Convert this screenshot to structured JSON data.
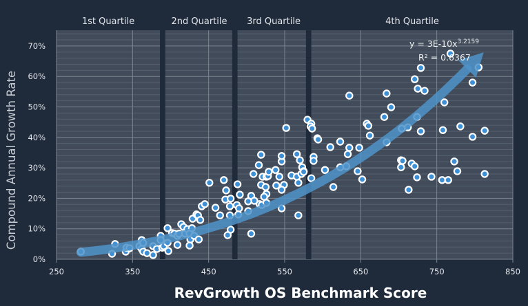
{
  "chart_data": {
    "type": "scatter",
    "xlabel": "RevGrowth OS Benchmark Score",
    "ylabel": "Compound Annual Growth Rate",
    "xlim": [
      250,
      850
    ],
    "ylim": [
      0,
      70
    ],
    "x_ticks": [
      250,
      350,
      450,
      550,
      650,
      750,
      850
    ],
    "y_ticks": [
      "0%",
      "10%",
      "20%",
      "30%",
      "40%",
      "50%",
      "60%",
      "70%"
    ],
    "y_unit": "%",
    "grid": true,
    "quartiles": [
      {
        "label": "1st Quartile",
        "range": [
          250,
          386
        ]
      },
      {
        "label": "2nd Quartile",
        "range": [
          393,
          481
        ]
      },
      {
        "label": "3rd Quartile",
        "range": [
          488,
          578
        ]
      },
      {
        "label": "4th Quartile",
        "range": [
          585,
          850
        ]
      }
    ],
    "trendline": {
      "type": "power",
      "coefficient": 3e-10,
      "exponent": 3.2159,
      "equation_label": "y = 3E-10x",
      "equation_exponent": "3.2159",
      "r_squared_label": "R² = 0.6367",
      "x_range": [
        282,
        815
      ]
    },
    "colors": {
      "background": "#1f2a3b",
      "plot_area": "#414b59",
      "point_fill": "#3d8fd6",
      "point_ring": "#ffffff",
      "trend_arrow": "#4f93c9",
      "quartile_divider": "#1f2a3b"
    },
    "points": [
      [
        282,
        2.5
      ],
      [
        323,
        1.8
      ],
      [
        327,
        5.0
      ],
      [
        341,
        2.5
      ],
      [
        342,
        3.8
      ],
      [
        346,
        3.6
      ],
      [
        359,
        4.3
      ],
      [
        362,
        6.3
      ],
      [
        364,
        5.4
      ],
      [
        362,
        3.4
      ],
      [
        364,
        2.5
      ],
      [
        369,
        2.0
      ],
      [
        377,
        1.4
      ],
      [
        377,
        4.3
      ],
      [
        382,
        3.4
      ],
      [
        387,
        7.7
      ],
      [
        387,
        6.3
      ],
      [
        389,
        3.8
      ],
      [
        391,
        4.3
      ],
      [
        396,
        5.4
      ],
      [
        397,
        2.7
      ],
      [
        396,
        10.2
      ],
      [
        402,
        8.6
      ],
      [
        405,
        8.4
      ],
      [
        409,
        7.7
      ],
      [
        409,
        4.7
      ],
      [
        411,
        8.4
      ],
      [
        414,
        11.5
      ],
      [
        417,
        10.6
      ],
      [
        419,
        8.4
      ],
      [
        422,
        9.9
      ],
      [
        425,
        8.4
      ],
      [
        426,
        6.5
      ],
      [
        425,
        4.5
      ],
      [
        428,
        10.2
      ],
      [
        429,
        13.3
      ],
      [
        431,
        7.7
      ],
      [
        434,
        14.7
      ],
      [
        436,
        14.4
      ],
      [
        437,
        6.5
      ],
      [
        439,
        12.9
      ],
      [
        441,
        17.4
      ],
      [
        445,
        18.1
      ],
      [
        451,
        25.1
      ],
      [
        470,
        26.0
      ],
      [
        488,
        24.6
      ],
      [
        473,
        22.6
      ],
      [
        491,
        21.2
      ],
      [
        506,
        20.8
      ],
      [
        472,
        19.6
      ],
      [
        479,
        19.9
      ],
      [
        459,
        16.9
      ],
      [
        478,
        17.4
      ],
      [
        487,
        17.8
      ],
      [
        490,
        16.7
      ],
      [
        465,
        14.4
      ],
      [
        478,
        14.4
      ],
      [
        489,
        14.7
      ],
      [
        502,
        15.8
      ],
      [
        510,
        19.2
      ],
      [
        502,
        19.0
      ],
      [
        517,
        18.1
      ],
      [
        520,
        17.8
      ],
      [
        526,
        18.5
      ],
      [
        526,
        21.4
      ],
      [
        523,
        20.5
      ],
      [
        519,
        24.4
      ],
      [
        525,
        23.7
      ],
      [
        539,
        24.2
      ],
      [
        549,
        24.4
      ],
      [
        546,
        22.8
      ],
      [
        546,
        16.7
      ],
      [
        568,
        14.4
      ],
      [
        479,
        9.7
      ],
      [
        475,
        7.9
      ],
      [
        506,
        8.4
      ],
      [
        509,
        28.0
      ],
      [
        521,
        27.1
      ],
      [
        526,
        27.1
      ],
      [
        528,
        27.3
      ],
      [
        543,
        27.1
      ],
      [
        559,
        27.5
      ],
      [
        566,
        27.1
      ],
      [
        529,
        28.7
      ],
      [
        538,
        29.3
      ],
      [
        516,
        30.9
      ],
      [
        546,
        32.1
      ],
      [
        546,
        33.9
      ],
      [
        519,
        34.3
      ],
      [
        566,
        34.5
      ],
      [
        570,
        32.5
      ],
      [
        573,
        30.2
      ],
      [
        575,
        28.9
      ],
      [
        572,
        28.0
      ],
      [
        575,
        28.7
      ],
      [
        568,
        25.1
      ],
      [
        585,
        26.6
      ],
      [
        588,
        33.6
      ],
      [
        588,
        32.3
      ],
      [
        552,
        43.1
      ],
      [
        580,
        45.8
      ],
      [
        585,
        44.5
      ],
      [
        584,
        43.6
      ],
      [
        586,
        42.9
      ],
      [
        593,
        39.7
      ],
      [
        594,
        39.3
      ],
      [
        610,
        36.8
      ],
      [
        603,
        29.3
      ],
      [
        614,
        23.7
      ],
      [
        623,
        38.6
      ],
      [
        635,
        36.6
      ],
      [
        633,
        34.5
      ],
      [
        648,
        36.6
      ],
      [
        635,
        53.7
      ],
      [
        658,
        44.5
      ],
      [
        660,
        43.8
      ],
      [
        662,
        40.6
      ],
      [
        681,
        46.7
      ],
      [
        684,
        54.4
      ],
      [
        690,
        49.9
      ],
      [
        684,
        38.4
      ],
      [
        704,
        42.9
      ],
      [
        712,
        43.3
      ],
      [
        729,
        42.0
      ],
      [
        721,
        59.1
      ],
      [
        725,
        56.0
      ],
      [
        734,
        55.3
      ],
      [
        729,
        62.8
      ],
      [
        724,
        46.7
      ],
      [
        758,
        42.4
      ],
      [
        760,
        51.5
      ],
      [
        781,
        43.6
      ],
      [
        813,
        42.2
      ],
      [
        797,
        40.2
      ],
      [
        797,
        58.0
      ],
      [
        805,
        63.0
      ],
      [
        768,
        67.5
      ],
      [
        623,
        30.2
      ],
      [
        631,
        30.5
      ],
      [
        646,
        28.9
      ],
      [
        652,
        26.2
      ],
      [
        703,
        32.5
      ],
      [
        705,
        32.3
      ],
      [
        703,
        30.2
      ],
      [
        717,
        31.4
      ],
      [
        721,
        30.5
      ],
      [
        724,
        26.9
      ],
      [
        713,
        22.8
      ],
      [
        743,
        27.1
      ],
      [
        757,
        26.0
      ],
      [
        765,
        26.0
      ],
      [
        773,
        32.1
      ],
      [
        777,
        28.9
      ],
      [
        813,
        28.0
      ]
    ]
  }
}
